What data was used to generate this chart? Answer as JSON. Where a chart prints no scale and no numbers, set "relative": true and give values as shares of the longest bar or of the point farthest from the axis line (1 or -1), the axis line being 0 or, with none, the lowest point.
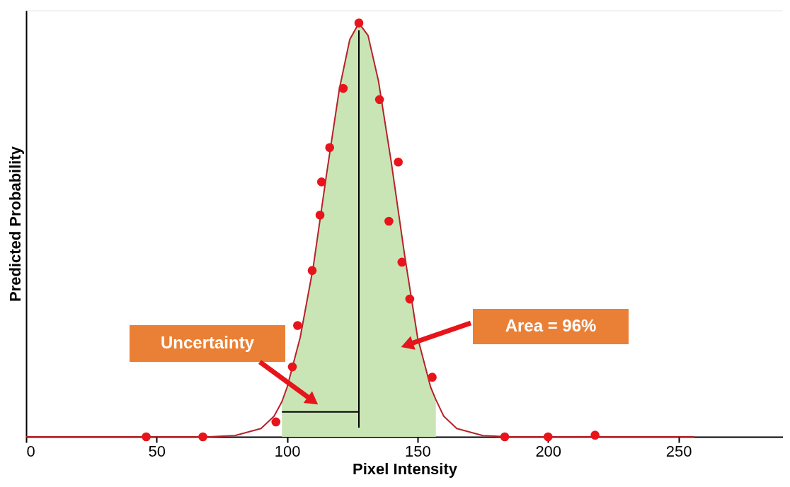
{
  "chart_data": {
    "type": "scatter",
    "xlabel": "Pixel Intensity",
    "ylabel": "Predicted Probability",
    "relative": true,
    "xlim": [
      0,
      290
    ],
    "xticks": [
      0,
      50,
      100,
      150,
      200,
      250
    ],
    "grid": false,
    "series": [
      {
        "type": "area",
        "color": "#c9e5b5",
        "x": [
          98,
          100,
          105,
          110,
          115,
          120,
          124,
          127.5,
          131,
          135,
          140,
          145,
          150,
          155,
          157
        ],
        "values": [
          0.085,
          0.12,
          0.24,
          0.41,
          0.63,
          0.84,
          0.96,
          1.0,
          0.97,
          0.86,
          0.66,
          0.44,
          0.24,
          0.12,
          0.09
        ]
      },
      {
        "type": "line",
        "color": "#b5232a",
        "marker": "none",
        "x": [
          0,
          70,
          80,
          90,
          95,
          98,
          100,
          105,
          110,
          115,
          120,
          124,
          127.5,
          131,
          135,
          140,
          145,
          150,
          155,
          157,
          160,
          165,
          175,
          185,
          256
        ],
        "values": [
          0,
          0,
          0.003,
          0.02,
          0.05,
          0.085,
          0.12,
          0.24,
          0.41,
          0.63,
          0.84,
          0.96,
          1.0,
          0.97,
          0.86,
          0.66,
          0.44,
          0.24,
          0.12,
          0.09,
          0.05,
          0.02,
          0.003,
          0,
          0
        ]
      },
      {
        "type": "line",
        "color": "#000000",
        "marker": "none",
        "x": [
          98,
          127.5
        ],
        "values": [
          0.06,
          0.06
        ]
      },
      {
        "marker": "circle",
        "color": "#e8141b",
        "x": [
          46,
          67.7,
          95.7,
          102,
          104,
          109.6,
          112.6,
          113.2,
          116.3,
          121.5,
          127.5,
          135.4,
          142.6,
          139,
          144,
          147,
          155.6,
          183.4,
          200,
          218
        ],
        "values": [
          0,
          0,
          0.036,
          0.169,
          0.269,
          0.402,
          0.536,
          0.616,
          0.699,
          0.842,
          1.0,
          0.815,
          0.664,
          0.521,
          0.422,
          0.333,
          0.144,
          0,
          0,
          0.004
        ]
      }
    ],
    "ref_lines": [
      {
        "axis": "x",
        "value": 127.5,
        "color": "#000000"
      }
    ],
    "annotations": [
      "Uncertainty",
      "Area = 96%"
    ]
  }
}
